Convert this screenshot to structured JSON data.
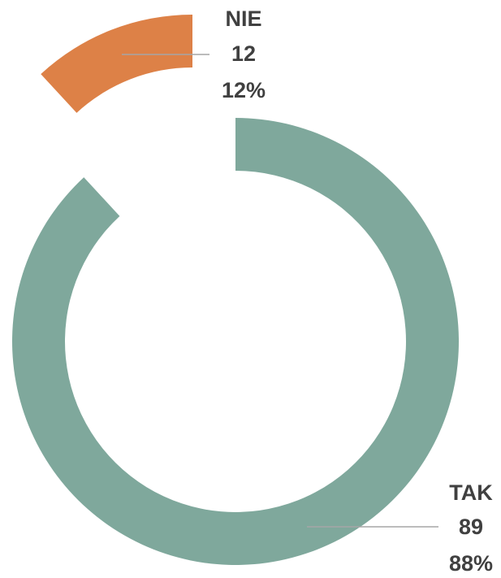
{
  "chart_data": {
    "type": "donut",
    "categories": [
      "TAK",
      "NIE"
    ],
    "values": [
      89,
      12
    ],
    "percent_labels": [
      "88%",
      "12%"
    ],
    "colors": [
      "#7fa89c",
      "#dd8147"
    ],
    "exploded": [
      false,
      true
    ]
  }
}
